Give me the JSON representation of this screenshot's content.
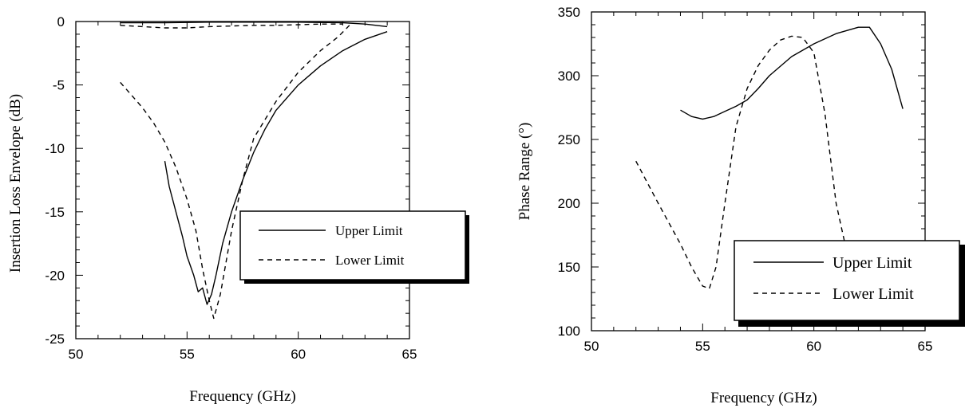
{
  "chart_data": [
    {
      "type": "line",
      "xlabel": "Frequency (GHz)",
      "ylabel": "Insertion Loss Envelope (dB)",
      "xlim": [
        50,
        65
      ],
      "ylim": [
        -25,
        0
      ],
      "xticks": [
        "50",
        "55",
        "60",
        "65"
      ],
      "yticks": [
        "0",
        "-5",
        "-10",
        "-15",
        "-20",
        "-25"
      ],
      "legend_position": "center-right",
      "legend": [
        "Upper Limit",
        "Lower Limit"
      ],
      "series": [
        {
          "name": "Upper Limit",
          "style": "solid",
          "x": [
            54,
            54.2,
            54.5,
            54.8,
            55.0,
            55.3,
            55.5,
            55.7,
            55.9,
            56.1,
            56.3,
            56.6,
            57.0,
            57.5,
            58,
            58.5,
            59,
            60,
            61,
            62,
            63,
            64
          ],
          "y": [
            -11,
            -13,
            -15,
            -17,
            -18.5,
            -20,
            -21.3,
            -21.0,
            -22.3,
            -21.5,
            -20.0,
            -17.5,
            -15.0,
            -12.5,
            -10.3,
            -8.5,
            -7.0,
            -5.0,
            -3.5,
            -2.3,
            -1.4,
            -0.8
          ]
        },
        {
          "name": "Upper Limit",
          "style": "solid",
          "x": [
            52,
            54,
            56,
            58,
            60,
            62,
            63,
            64
          ],
          "y": [
            -0.1,
            -0.1,
            -0.05,
            -0.05,
            -0.05,
            -0.1,
            -0.2,
            -0.4
          ]
        },
        {
          "name": "Lower Limit",
          "style": "dashed",
          "x": [
            52,
            52.5,
            53,
            53.5,
            54,
            54.5,
            55,
            55.4,
            55.7,
            56.0,
            56.2,
            56.5,
            57,
            57.5,
            58,
            59,
            60,
            61,
            61.8,
            62.3
          ],
          "y": [
            -4.8,
            -5.8,
            -6.8,
            -8,
            -9.5,
            -11.5,
            -14,
            -16.5,
            -19.5,
            -22,
            -23.4,
            -21.5,
            -16.5,
            -12.5,
            -9.2,
            -6.3,
            -4.0,
            -2.3,
            -1.2,
            -0.3
          ]
        },
        {
          "name": "Lower Limit",
          "style": "dashed",
          "x": [
            52,
            53,
            54,
            55,
            56,
            57,
            58,
            59,
            60,
            61,
            62
          ],
          "y": [
            -0.3,
            -0.4,
            -0.5,
            -0.5,
            -0.4,
            -0.35,
            -0.3,
            -0.3,
            -0.25,
            -0.2,
            -0.2
          ]
        }
      ]
    },
    {
      "type": "line",
      "xlabel": "Frequency (GHz)",
      "ylabel": "Phase Range (°)",
      "xlim": [
        50,
        65
      ],
      "ylim": [
        100,
        350
      ],
      "xticks": [
        "50",
        "55",
        "60",
        "65"
      ],
      "yticks": [
        "350",
        "300",
        "250",
        "200",
        "150",
        "100"
      ],
      "legend_position": "bottom-right",
      "legend": [
        "Upper Limit",
        "Lower Limit"
      ],
      "series": [
        {
          "name": "Upper Limit",
          "style": "solid",
          "x": [
            54,
            54.5,
            55,
            55.5,
            56,
            56.5,
            57,
            57.5,
            58,
            59,
            60,
            61,
            62,
            62.5,
            63,
            63.5,
            64
          ],
          "y": [
            273,
            268,
            266,
            268,
            272,
            276,
            281,
            290,
            300,
            315,
            325,
            333,
            338,
            338,
            325,
            305,
            274
          ]
        },
        {
          "name": "Lower Limit",
          "style": "dashed",
          "x": [
            52,
            53,
            54,
            54.5,
            55,
            55.3,
            55.6,
            56,
            56.5,
            57,
            57.5,
            58,
            58.5,
            59,
            59.5,
            60,
            60.5,
            61,
            61.5
          ],
          "y": [
            233,
            200,
            168,
            150,
            135,
            133,
            150,
            200,
            260,
            290,
            308,
            320,
            328,
            331,
            330,
            318,
            270,
            200,
            160
          ]
        }
      ]
    }
  ]
}
